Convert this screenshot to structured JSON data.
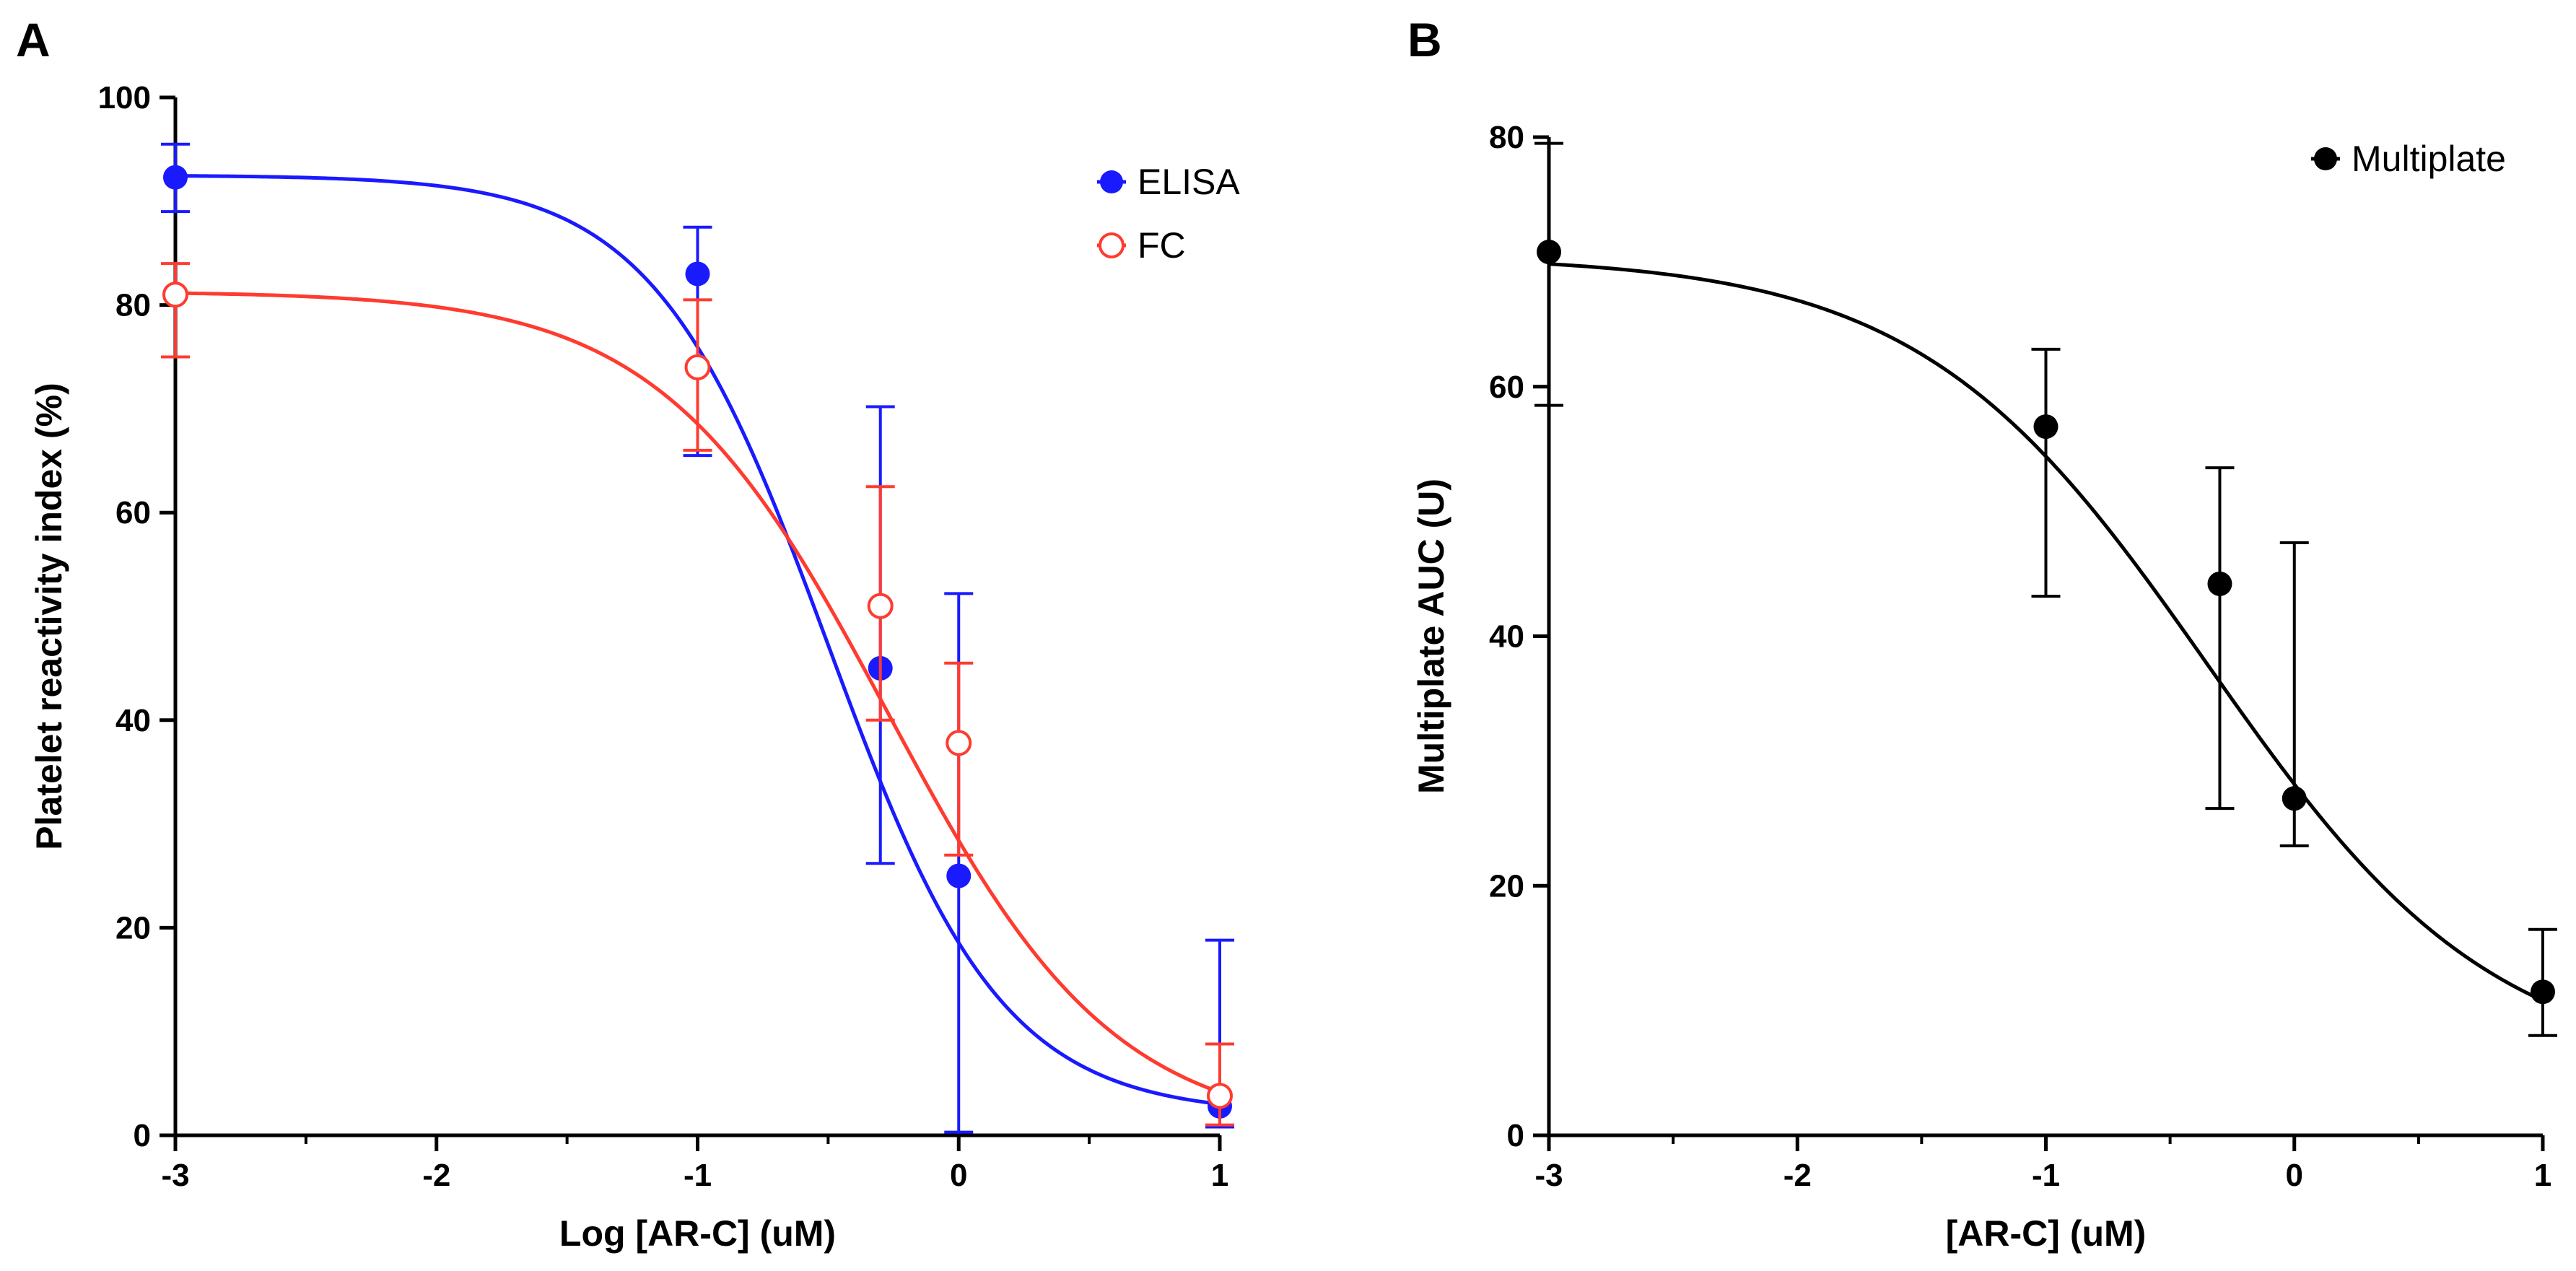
{
  "colors": {
    "elisa": "#1a1aff",
    "fc": "#ff3b30",
    "multiplate": "#000000"
  },
  "chart_data": [
    {
      "panel_label": "A",
      "type": "scatter",
      "xlabel": "Log [AR-C] (uM)",
      "ylabel": "Platelet reactivity index (%)",
      "xlim": [
        -3,
        1
      ],
      "ylim": [
        0,
        100
      ],
      "xticks": [
        "-3",
        "-2",
        "-1",
        "0",
        "1"
      ],
      "yticks": [
        "0",
        "20",
        "40",
        "60",
        "80",
        "100"
      ],
      "legend_position": "top-right",
      "series": [
        {
          "name": "ELISA",
          "marker": "filled-circle",
          "color": "#1a1aff",
          "points": [
            {
              "x": -3,
              "y": 92.3,
              "err_low": 89.0,
              "err_high": 95.5
            },
            {
              "x": -1,
              "y": 83.0,
              "err_low": 65.5,
              "err_high": 87.5
            },
            {
              "x": -0.3,
              "y": 45.0,
              "err_low": 26.2,
              "err_high": 70.2
            },
            {
              "x": 0,
              "y": 25.0,
              "err_low": 0.3,
              "err_high": 52.2
            },
            {
              "x": 1,
              "y": 2.8,
              "err_low": 0.8,
              "err_high": 18.8
            }
          ],
          "fit": {
            "bottom": 2,
            "top": 92.5,
            "log_ec50": -0.5,
            "hill": 1.3
          }
        },
        {
          "name": "FC",
          "marker": "open-circle",
          "color": "#ff3b30",
          "points": [
            {
              "x": -3,
              "y": 81.0,
              "err_low": 75.0,
              "err_high": 84.0
            },
            {
              "x": -1,
              "y": 74.0,
              "err_low": 66.0,
              "err_high": 80.5
            },
            {
              "x": -0.3,
              "y": 51.0,
              "err_low": 40.0,
              "err_high": 62.5
            },
            {
              "x": 0,
              "y": 37.8,
              "err_low": 27.0,
              "err_high": 45.5
            },
            {
              "x": 1,
              "y": 3.8,
              "err_low": 1.0,
              "err_high": 8.8
            }
          ],
          "fit": {
            "bottom": 0,
            "top": 81.3,
            "log_ec50": -0.27,
            "hill": 1.0
          }
        }
      ]
    },
    {
      "panel_label": "B",
      "type": "scatter",
      "xlabel": "[AR-C] (uM)",
      "ylabel": "Multiplate AUC (U)",
      "xlim": [
        -3,
        1
      ],
      "ylim": [
        0,
        80
      ],
      "xticks": [
        "-3",
        "-2",
        "-1",
        "0",
        "1"
      ],
      "yticks": [
        "0",
        "20",
        "40",
        "60",
        "80"
      ],
      "legend_position": "top-right",
      "series": [
        {
          "name": "Multiplate",
          "marker": "filled-circle",
          "color": "#000000",
          "points": [
            {
              "x": -3,
              "y": 70.8,
              "err_low": 58.5,
              "err_high": 79.5
            },
            {
              "x": -1,
              "y": 56.8,
              "err_low": 43.2,
              "err_high": 63.0
            },
            {
              "x": -0.3,
              "y": 44.2,
              "err_low": 26.2,
              "err_high": 53.5
            },
            {
              "x": 0,
              "y": 27.0,
              "err_low": 23.2,
              "err_high": 47.5
            },
            {
              "x": 1,
              "y": 11.5,
              "err_low": 8.0,
              "err_high": 16.5
            }
          ],
          "fit": {
            "bottom": 5,
            "top": 70.5,
            "log_ec50": -0.35,
            "hill": 0.75
          }
        }
      ]
    }
  ]
}
